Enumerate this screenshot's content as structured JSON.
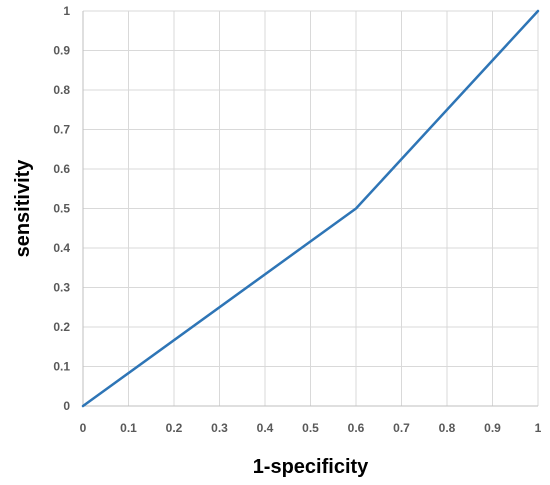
{
  "chart_data": {
    "type": "line",
    "xlabel": "1-specificity",
    "ylabel": "sensitivity",
    "xlim": [
      0,
      1
    ],
    "ylim": [
      0,
      1
    ],
    "x_ticks": [
      "0",
      "0.1",
      "0.2",
      "0.3",
      "0.4",
      "0.5",
      "0.6",
      "0.7",
      "0.8",
      "0.9",
      "1"
    ],
    "y_ticks": [
      "0",
      "0.1",
      "0.2",
      "0.3",
      "0.4",
      "0.5",
      "0.6",
      "0.7",
      "0.8",
      "0.9",
      "1"
    ],
    "grid": true,
    "legend": "none",
    "series": [
      {
        "color": "#2e75b6",
        "x": [
          0,
          0.6,
          1
        ],
        "y": [
          0,
          0.5,
          1
        ]
      }
    ]
  }
}
